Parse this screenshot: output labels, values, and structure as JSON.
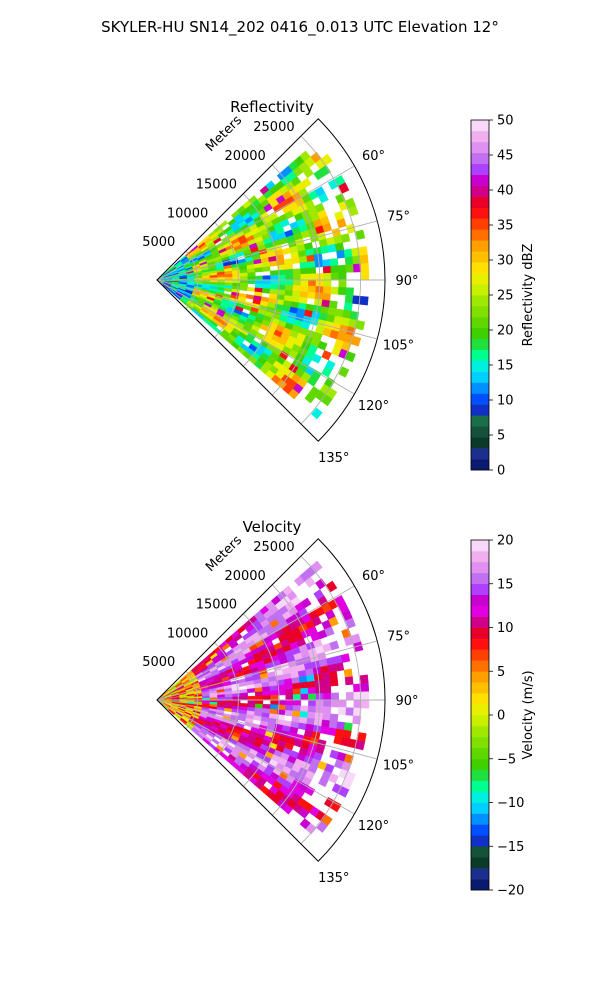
{
  "figure": {
    "suptitle": "SKYLER-HU  SN14_202  0416_0.013 UTC Elevation 12°"
  },
  "chart_data": [
    {
      "type": "heatmap",
      "title": "Reflectivity",
      "radial_label": "Meters",
      "radial_ticks": [
        "5000",
        "10000",
        "15000",
        "20000",
        "25000"
      ],
      "radial_tick_values": [
        5000,
        10000,
        15000,
        20000,
        25000
      ],
      "rmax": 28000,
      "azimuth_range_deg": [
        45,
        135
      ],
      "azimuth_tick_values": [
        60,
        75,
        90,
        105,
        120,
        135
      ],
      "azimuth_ticks": [
        "60°",
        "75°",
        "90°",
        "105°",
        "120°",
        "135°"
      ],
      "grid": true,
      "colorbar": {
        "label": "Reflectivity dBZ",
        "vmin": 0,
        "vmax": 50,
        "ticks": [
          "0",
          "5",
          "10",
          "15",
          "20",
          "25",
          "30",
          "35",
          "40",
          "45",
          "50"
        ],
        "tick_values": [
          0,
          5,
          10,
          15,
          20,
          25,
          30,
          35,
          40,
          45,
          50
        ],
        "colors": [
          "#0a1a6e",
          "#1d2f8e",
          "#0a3a2a",
          "#14533a",
          "#1a6e4a",
          "#1030c8",
          "#0050ff",
          "#0090ff",
          "#00d0ff",
          "#00f0e0",
          "#00ff90",
          "#20e040",
          "#40d000",
          "#60d800",
          "#80e000",
          "#a0e800",
          "#c8f000",
          "#e8f000",
          "#ffe000",
          "#ffc000",
          "#ffa000",
          "#ff7000",
          "#ff4000",
          "#ff1010",
          "#e8002a",
          "#d0008a",
          "#c800d0",
          "#b040ff",
          "#c070f0",
          "#e090f0",
          "#f0b0f0",
          "#f8d8f8"
        ]
      },
      "field_notes": "Mostly 18–30 dBZ (green–yellow) with scattered red cores 32–38 dBZ and small magenta patches near 40 dBZ"
    },
    {
      "type": "heatmap",
      "title": "Velocity",
      "radial_label": "Meters",
      "radial_ticks": [
        "5000",
        "10000",
        "15000",
        "20000",
        "25000"
      ],
      "radial_tick_values": [
        5000,
        10000,
        15000,
        20000,
        25000
      ],
      "rmax": 28000,
      "azimuth_range_deg": [
        45,
        135
      ],
      "azimuth_tick_values": [
        60,
        75,
        90,
        105,
        120,
        135
      ],
      "azimuth_ticks": [
        "60°",
        "75°",
        "90°",
        "105°",
        "120°",
        "135°"
      ],
      "grid": true,
      "colorbar": {
        "label": "Velocity (m/s)",
        "vmin": -20,
        "vmax": 20,
        "ticks": [
          "−20",
          "−15",
          "−10",
          "−5",
          "0",
          "5",
          "10",
          "15",
          "20"
        ],
        "tick_values": [
          -20,
          -15,
          -10,
          -5,
          0,
          5,
          10,
          15,
          20
        ],
        "colors": [
          "#0a1a6e",
          "#1d2f8e",
          "#0a3a2a",
          "#14533a",
          "#1030c8",
          "#0050ff",
          "#0090ff",
          "#00d0ff",
          "#00f0e0",
          "#00ff90",
          "#20e040",
          "#40d000",
          "#60d800",
          "#80e000",
          "#a0e800",
          "#c8f000",
          "#e8f000",
          "#ffe000",
          "#ffc000",
          "#ffa000",
          "#ff7000",
          "#ff4000",
          "#ff1010",
          "#e8002a",
          "#d0008a",
          "#e000e0",
          "#c800d0",
          "#b040ff",
          "#c070f0",
          "#e090f0",
          "#f0b0f0",
          "#f8d8f8"
        ]
      },
      "field_notes": "Predominantly 8–15 m/s (red–magenta), yellow/orange near radar and along edges, small cyan patches around −10 m/s"
    }
  ]
}
